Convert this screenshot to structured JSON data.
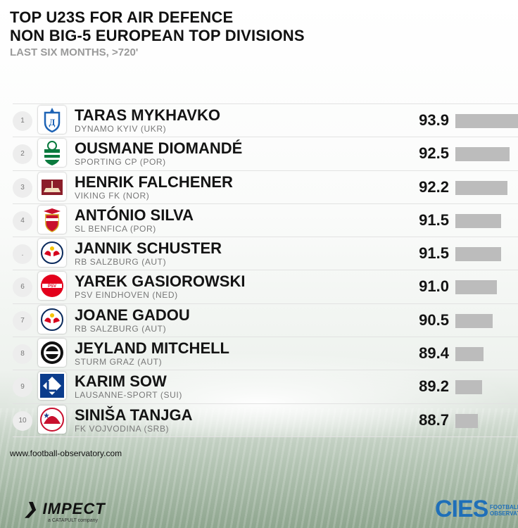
{
  "header": {
    "title_line1": "TOP U23S FOR AIR DEFENCE",
    "title_line2": "NON BIG-5 EUROPEAN TOP DIVISIONS",
    "subtitle": "LAST SIX MONTHS, >720'"
  },
  "colors": {
    "bar": "#bcbcbc",
    "text": "#141414",
    "club_text": "#777777",
    "cies_blue": "#1f6fb8"
  },
  "chart_data": {
    "type": "bar",
    "orientation": "horizontal",
    "title": "TOP U23S FOR AIR DEFENCE",
    "subtitle": "NON BIG-5 EUROPEAN TOP DIVISIONS",
    "note": "LAST SIX MONTHS, >720'",
    "xlim": [
      86,
      94
    ],
    "rows": [
      {
        "rank": "1",
        "name": "TARAS MYKHAVKO",
        "club": "DYNAMO KYIV (UKR)",
        "value": 93.9,
        "label": "93.9",
        "logo": "dynamo-kyiv-logo"
      },
      {
        "rank": "2",
        "name": "OUSMANE DIOMANDÉ",
        "club": "SPORTING CP (POR)",
        "value": 92.5,
        "label": "92.5",
        "logo": "sporting-cp-logo"
      },
      {
        "rank": "3",
        "name": "HENRIK FALCHENER",
        "club": "VIKING FK (NOR)",
        "value": 92.2,
        "label": "92.2",
        "logo": "viking-fk-logo"
      },
      {
        "rank": "4",
        "name": "ANTÓNIO SILVA",
        "club": "SL BENFICA (POR)",
        "value": 91.5,
        "label": "91.5",
        "logo": "benfica-logo"
      },
      {
        "rank": ".",
        "name": "JANNIK SCHUSTER",
        "club": "RB SALZBURG (AUT)",
        "value": 91.5,
        "label": "91.5",
        "logo": "rb-salzburg-logo"
      },
      {
        "rank": "6",
        "name": "YAREK GASIOROWSKI",
        "club": "PSV EINDHOVEN (NED)",
        "value": 91.0,
        "label": "91.0",
        "logo": "psv-logo"
      },
      {
        "rank": "7",
        "name": "JOANE GADOU",
        "club": "RB SALZBURG (AUT)",
        "value": 90.5,
        "label": "90.5",
        "logo": "rb-salzburg-logo"
      },
      {
        "rank": "8",
        "name": "JEYLAND MITCHELL",
        "club": "STURM GRAZ (AUT)",
        "value": 89.4,
        "label": "89.4",
        "logo": "sturm-graz-logo"
      },
      {
        "rank": "9",
        "name": "KARIM SOW",
        "club": "LAUSANNE-SPORT (SUI)",
        "value": 89.2,
        "label": "89.2",
        "logo": "lausanne-sport-logo"
      },
      {
        "rank": "10",
        "name": "SINIŠA TANJGA",
        "club": "FK VOJVODINA (SRB)",
        "value": 88.7,
        "label": "88.7",
        "logo": "vojvodina-logo"
      }
    ]
  },
  "footer": {
    "url": "www.football-observatory.com",
    "impect_label": "IMPECT",
    "impect_sub": "a CATAPULT company",
    "cies_label": "CIES",
    "cies_sub_line1": "FOOTBALL",
    "cies_sub_line2": "OBSERVATORY"
  }
}
